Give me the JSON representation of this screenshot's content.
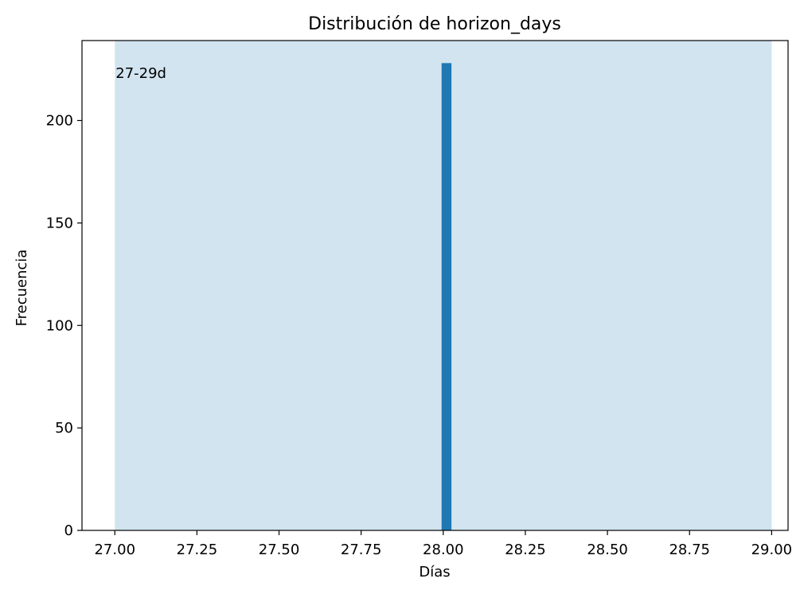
{
  "chart_data": {
    "type": "bar",
    "title": "Distribución de horizon_days",
    "xlabel": "Días",
    "ylabel": "Frecuencia",
    "xlim": [
      26.9,
      29.05
    ],
    "ylim": [
      0,
      239
    ],
    "grid": false,
    "bars": [
      {
        "x0": 27.995,
        "x1": 28.025,
        "value": 228
      }
    ],
    "shaded_band": {
      "x0": 27.0,
      "x1": 29.0,
      "label": "27-29d"
    },
    "x_ticks": [
      {
        "value": 27.0,
        "label": "27.00"
      },
      {
        "value": 27.25,
        "label": "27.25"
      },
      {
        "value": 27.5,
        "label": "27.50"
      },
      {
        "value": 27.75,
        "label": "27.75"
      },
      {
        "value": 28.0,
        "label": "28.00"
      },
      {
        "value": 28.25,
        "label": "28.25"
      },
      {
        "value": 28.5,
        "label": "28.50"
      },
      {
        "value": 28.75,
        "label": "28.75"
      },
      {
        "value": 29.0,
        "label": "29.00"
      }
    ],
    "y_ticks": [
      {
        "value": 0,
        "label": "0"
      },
      {
        "value": 50,
        "label": "50"
      },
      {
        "value": 100,
        "label": "100"
      },
      {
        "value": 150,
        "label": "150"
      },
      {
        "value": 200,
        "label": "200"
      }
    ],
    "colors": {
      "bar": "#1f77b4",
      "band": "#d1e4f0",
      "axis": "#000000"
    }
  }
}
